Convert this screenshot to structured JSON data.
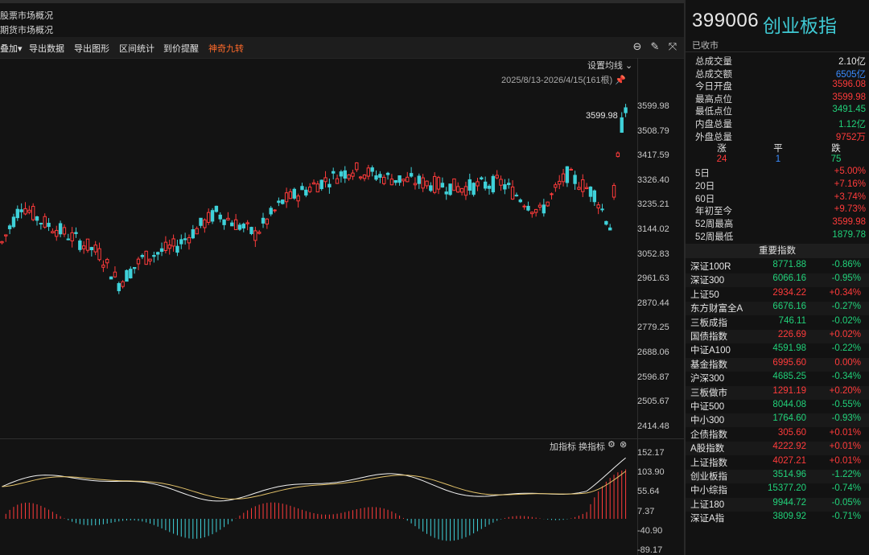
{
  "market_links": [
    "股票市场概况",
    "期货市场概况"
  ],
  "toolbar": {
    "items": [
      "叠加",
      "导出数据",
      "导出图形",
      "区间统计",
      "到价提醒",
      "神奇九转"
    ],
    "overlay_arrow": "▾"
  },
  "chart": {
    "setting_label": "设置均线 ⌄",
    "range_label": "2025/8/13-2026/4/15(161根)",
    "high_marker": "3599.98",
    "sub_controls": [
      "加指标",
      "换指标"
    ]
  },
  "chart_data": {
    "type": "candlestick",
    "y_axis": [
      "3599.98",
      "3508.79",
      "3417.59",
      "3326.40",
      "3235.21",
      "3144.02",
      "3052.83",
      "2961.63",
      "2870.44",
      "2779.25",
      "2688.06",
      "2596.87",
      "2505.67",
      "2414.48"
    ],
    "sub_y_axis": [
      "152.17",
      "103.90",
      "55.64",
      "7.37",
      "-40.90",
      "-89.17"
    ],
    "date_range": "2025/8/13-2026/4/15",
    "bars_count": 161,
    "highest": 3599.98
  },
  "quote": {
    "code": "399006",
    "name": "创业板指",
    "status": "已收市",
    "stats": [
      {
        "label": "总成交量",
        "value": "2.10亿",
        "color": "white"
      },
      {
        "label": "总成交额",
        "value": "6505亿",
        "color": "blue"
      },
      {
        "label": "今日开盘",
        "value": "3596.08",
        "color": "red"
      },
      {
        "label": "最高点位",
        "value": "3599.98",
        "color": "red"
      },
      {
        "label": "最低点位",
        "value": "3491.45",
        "color": "green"
      },
      {
        "label": "内盘总量",
        "value": "1.12亿",
        "color": "green"
      },
      {
        "label": "外盘总量",
        "value": "9752万",
        "color": "red"
      }
    ],
    "zpd_labels": [
      "涨",
      "平",
      "跌"
    ],
    "zpd_values": [
      "24",
      "1",
      "75"
    ],
    "periods": [
      {
        "label": "5日",
        "value": "+5.00%"
      },
      {
        "label": "20日",
        "value": "+7.16%"
      },
      {
        "label": "60日",
        "value": "+3.74%"
      },
      {
        "label": "年初至今",
        "value": "+9.73%"
      },
      {
        "label": "52周最高",
        "value": "3599.98"
      },
      {
        "label": "52周最低",
        "value": "1879.78"
      }
    ]
  },
  "indices": {
    "header": "重要指数",
    "rows": [
      {
        "name": "深证100R",
        "price": "8771.88",
        "change": "-0.86%",
        "pc": "green",
        "cc": "green"
      },
      {
        "name": "深证300",
        "price": "6066.16",
        "change": "-0.95%",
        "pc": "green",
        "cc": "green"
      },
      {
        "name": "上证50",
        "price": "2934.22",
        "change": "+0.34%",
        "pc": "red",
        "cc": "red"
      },
      {
        "name": "东方财富全A",
        "price": "6676.16",
        "change": "-0.27%",
        "pc": "green",
        "cc": "green"
      },
      {
        "name": "三板成指",
        "price": "746.11",
        "change": "-0.02%",
        "pc": "green",
        "cc": "green"
      },
      {
        "name": "国债指数",
        "price": "226.69",
        "change": "+0.02%",
        "pc": "red",
        "cc": "red"
      },
      {
        "name": "中证A100",
        "price": "4591.98",
        "change": "-0.22%",
        "pc": "green",
        "cc": "green"
      },
      {
        "name": "基金指数",
        "price": "6995.60",
        "change": "0.00%",
        "pc": "red",
        "cc": "red"
      },
      {
        "name": "沪深300",
        "price": "4685.25",
        "change": "-0.34%",
        "pc": "green",
        "cc": "green"
      },
      {
        "name": "三板做市",
        "price": "1291.19",
        "change": "+0.20%",
        "pc": "red",
        "cc": "red"
      },
      {
        "name": "中证500",
        "price": "8044.08",
        "change": "-0.55%",
        "pc": "green",
        "cc": "green"
      },
      {
        "name": "中小300",
        "price": "1764.60",
        "change": "-0.93%",
        "pc": "green",
        "cc": "green"
      },
      {
        "name": "企债指数",
        "price": "305.60",
        "change": "+0.01%",
        "pc": "red",
        "cc": "red"
      },
      {
        "name": "A股指数",
        "price": "4222.92",
        "change": "+0.01%",
        "pc": "red",
        "cc": "red"
      },
      {
        "name": "上证指数",
        "price": "4027.21",
        "change": "+0.01%",
        "pc": "red",
        "cc": "red"
      },
      {
        "name": "创业板指",
        "price": "3514.96",
        "change": "-1.22%",
        "pc": "green",
        "cc": "green"
      },
      {
        "name": "中小综指",
        "price": "15377.20",
        "change": "-0.74%",
        "pc": "green",
        "cc": "green"
      },
      {
        "name": "上证180",
        "price": "9944.72",
        "change": "-0.05%",
        "pc": "green",
        "cc": "green"
      },
      {
        "name": "深证A指",
        "price": "3809.92",
        "change": "-0.71%",
        "pc": "green",
        "cc": "green"
      }
    ]
  }
}
